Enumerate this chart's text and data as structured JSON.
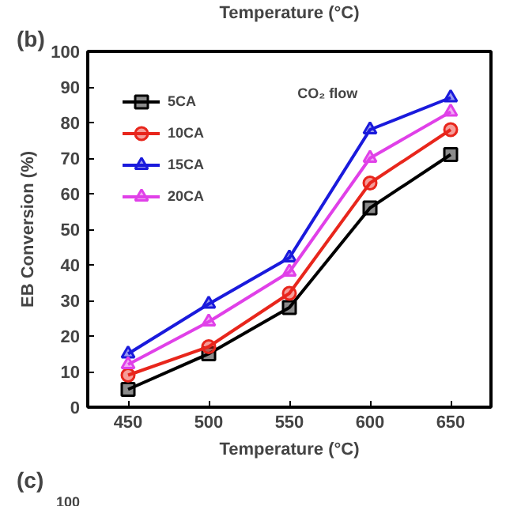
{
  "chart_data": {
    "type": "line",
    "title": "(b)",
    "xlabel": "Temperature (°C)",
    "ylabel": "EB Conversion (%)",
    "x": [
      450,
      500,
      550,
      600,
      650
    ],
    "series": [
      {
        "name": "5CA",
        "color": "#000000",
        "marker": "square",
        "values": [
          5,
          15,
          28,
          56,
          71
        ]
      },
      {
        "name": "10CA",
        "color": "#e8261c",
        "marker": "circle",
        "values": [
          9,
          17,
          32,
          63,
          78
        ]
      },
      {
        "name": "15CA",
        "color": "#1a1adc",
        "marker": "triangle",
        "values": [
          15,
          29,
          42,
          78,
          87
        ]
      },
      {
        "name": "20CA",
        "color": "#e040e8",
        "marker": "triangle",
        "values": [
          12,
          24,
          38,
          70,
          83
        ]
      }
    ],
    "xlim": [
      425,
      675
    ],
    "ylim": [
      0,
      100
    ],
    "xticks": [
      450,
      500,
      550,
      600,
      650
    ],
    "yticks": [
      0,
      10,
      20,
      30,
      40,
      50,
      60,
      70,
      80,
      90,
      100
    ],
    "grid": false,
    "legend": "top left",
    "line_style": "solid",
    "annotations": [
      "Temperature (°C)",
      "CO₂ flow",
      "(c)",
      "100"
    ]
  }
}
